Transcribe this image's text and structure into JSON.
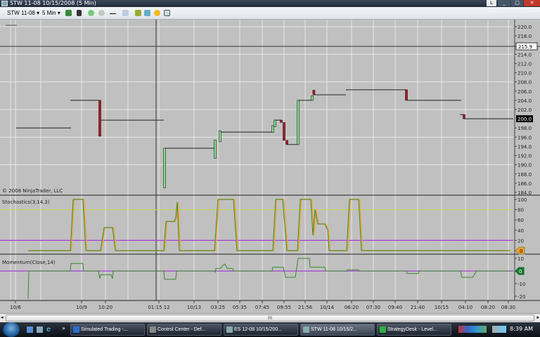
{
  "window": {
    "title": "STW 11-08  10/15/2008 (5 Min)",
    "controls": [
      "L",
      "minimize",
      "maximize",
      "close"
    ]
  },
  "toolbar": {
    "instrument": "STW 11-08",
    "interval": "5 Min",
    "icons": [
      "bar-style-icon",
      "draw-icon",
      "zoom-in-icon",
      "zoom-out-icon",
      "crosshair-icon",
      "properties-icon",
      "strategy-icon",
      "chart-icon",
      "indicator-icon",
      "data-box-icon"
    ]
  },
  "copyright": "© 2008 NinjaTrader, LLC",
  "colors": {
    "up": "#7ee08a",
    "down": "#b0141c",
    "stoch_k": "#3a8a2a",
    "stoch_d": "#f0a030",
    "level80": "#c8d850",
    "level20": "#a040d0",
    "mom": "#3a8a2a",
    "mom_zero": "#a040d0",
    "background": "#c0c0c0",
    "grid": "#e6e6e6"
  },
  "chart_data": [
    {
      "type": "line",
      "title": "STW 11-08 (5 Min)",
      "price_axis": {
        "range": [
          184,
          220
        ],
        "ticks": [
          "220.0",
          "218.0",
          "216.0",
          "214.0",
          "212.0",
          "210.0",
          "208.0",
          "206.0",
          "204.0",
          "202.0",
          "200.0",
          "198.0",
          "196.0",
          "194.0",
          "192.0",
          "190.0",
          "188.0",
          "186.0",
          "184.0"
        ],
        "last_price": "200.0",
        "crosshair_price": "215.9"
      },
      "close_segments": [
        [
          [
            5.75,
            198
          ],
          [
            25.25,
            198
          ]
        ],
        [
          [
            25,
            204
          ],
          [
            35.25,
            204
          ]
        ],
        [
          [
            35.75,
            199.7
          ],
          [
            58.25,
            199.7
          ]
        ],
        [
          [
            58.5,
            193.6
          ],
          [
            76.5,
            193.6
          ]
        ],
        [
          [
            78.5,
            197.1
          ],
          [
            97,
            197.1
          ]
        ],
        [
          [
            97.5,
            199.7
          ],
          [
            100,
            199.7
          ]
        ],
        [
          [
            102,
            194.4
          ],
          [
            106,
            194.4
          ]
        ],
        [
          [
            106,
            204
          ],
          [
            111,
            204
          ]
        ],
        [
          [
            112,
            205.2
          ],
          [
            123,
            205.2
          ]
        ],
        [
          [
            123,
            206.3
          ],
          [
            144.5,
            206.3
          ]
        ],
        [
          [
            144.5,
            204
          ],
          [
            164,
            204
          ]
        ],
        [
          [
            163.5,
            200.9
          ],
          [
            165,
            200.9
          ]
        ],
        [
          [
            165,
            200
          ],
          [
            182.5,
            200
          ]
        ]
      ],
      "candles": [
        [
          35.5,
          204,
          196.2
        ],
        [
          58.5,
          185,
          193.6
        ],
        [
          76.5,
          191.4,
          195.4
        ],
        [
          78.2,
          195,
          197.4
        ],
        [
          97,
          197,
          198.5
        ],
        [
          97.8,
          198.3,
          199.7
        ],
        [
          100,
          199.7,
          199.2
        ],
        [
          101,
          199.2,
          195.3
        ],
        [
          102,
          195.3,
          194.4
        ],
        [
          106,
          194.4,
          204
        ],
        [
          111,
          204,
          205
        ],
        [
          111.6,
          206.2,
          205.2
        ],
        [
          144.5,
          206.3,
          204
        ],
        [
          165,
          200.9,
          200
        ]
      ]
    },
    {
      "type": "line",
      "title": "Stochastics(3,14,3)",
      "axis": {
        "range": [
          0,
          100
        ],
        "ticks": [
          "100",
          "80",
          "60",
          "40",
          "20"
        ],
        "last_value": "0"
      },
      "levels": [
        20,
        80
      ],
      "series": [
        {
          "values": [
            [
              10,
              0
            ],
            [
              25,
              0
            ],
            [
              26,
              100
            ],
            [
              29.5,
              100
            ],
            [
              30.5,
              0
            ],
            [
              35.75,
              0
            ],
            [
              37,
              45
            ],
            [
              40,
              45
            ],
            [
              41,
              0
            ],
            [
              58.25,
              0
            ],
            [
              59,
              57
            ],
            [
              62,
              57
            ],
            [
              62.5,
              65
            ],
            [
              63,
              95
            ],
            [
              63.75,
              0
            ],
            [
              76.25,
              0
            ],
            [
              77.5,
              100
            ],
            [
              83,
              100
            ],
            [
              84.25,
              0
            ],
            [
              97,
              0
            ],
            [
              98,
              100
            ],
            [
              100.5,
              100
            ],
            [
              102,
              0
            ],
            [
              105.75,
              0
            ],
            [
              106.75,
              100
            ],
            [
              110.5,
              100
            ],
            [
              111.25,
              30
            ],
            [
              112,
              80
            ],
            [
              113,
              52
            ],
            [
              115.5,
              52
            ],
            [
              116.5,
              40
            ],
            [
              117,
              0
            ],
            [
              123.25,
              0
            ],
            [
              124.25,
              100
            ],
            [
              127.5,
              100
            ],
            [
              128.5,
              0
            ],
            [
              181.25,
              0
            ]
          ]
        }
      ]
    },
    {
      "type": "line",
      "title": "Momentum(Close,14)",
      "axis": {
        "range": [
          -22,
          12
        ],
        "ticks": [
          "10",
          "-10",
          "-20"
        ],
        "last_value": "0"
      },
      "series": [
        {
          "values": [
            [
              10,
              -22
            ],
            [
              10.25,
              0
            ],
            [
              25,
              0
            ],
            [
              25.25,
              6
            ],
            [
              29.5,
              6
            ],
            [
              29.75,
              0
            ],
            [
              35,
              0
            ],
            [
              35.5,
              -6
            ],
            [
              35.75,
              -3
            ],
            [
              39.5,
              -3
            ],
            [
              40,
              -6
            ],
            [
              40.25,
              0
            ],
            [
              58.25,
              0
            ],
            [
              58.5,
              -6.5
            ],
            [
              62.5,
              -6.5
            ],
            [
              62.75,
              0
            ],
            [
              76.25,
              0
            ],
            [
              76.5,
              -1
            ],
            [
              76.75,
              2
            ],
            [
              78.5,
              2
            ],
            [
              79,
              4
            ],
            [
              80,
              5.5
            ],
            [
              80.75,
              2
            ],
            [
              82.75,
              2
            ],
            [
              83,
              0
            ],
            [
              96.75,
              0
            ],
            [
              97,
              3
            ],
            [
              100.75,
              3
            ],
            [
              101.5,
              -5
            ],
            [
              105,
              -5
            ],
            [
              106,
              10
            ],
            [
              110,
              10
            ],
            [
              110.25,
              3
            ],
            [
              115.5,
              3
            ],
            [
              115.75,
              0
            ],
            [
              123.25,
              0
            ],
            [
              123.5,
              1
            ],
            [
              127.5,
              1
            ],
            [
              127.75,
              0
            ],
            [
              144.5,
              0
            ],
            [
              144.75,
              -2
            ],
            [
              148.75,
              -2
            ],
            [
              149,
              0
            ],
            [
              163.75,
              0
            ],
            [
              164.25,
              -5
            ],
            [
              168,
              -5
            ],
            [
              169.5,
              0
            ],
            [
              181.25,
              0
            ]
          ]
        }
      ]
    }
  ],
  "time_axis": [
    [
      "10/6",
      5.5
    ],
    [
      "10/9",
      29
    ],
    [
      "10:20",
      37.5
    ],
    [
      "01:15 12",
      56.5
    ],
    [
      "10/13",
      69
    ],
    [
      "03:25",
      77.5
    ],
    [
      "05:35",
      85.25
    ],
    [
      "07:45",
      93.25
    ],
    [
      "09:55",
      101
    ],
    [
      "21:56",
      108.5
    ],
    [
      "10/14",
      116.25
    ],
    [
      "06:20",
      125
    ],
    [
      "07:30",
      132.75
    ],
    [
      "09:40",
      140.5
    ],
    [
      "21:40",
      148.5
    ],
    [
      "10/15",
      157
    ],
    [
      "04:10",
      165.5
    ],
    [
      "08:20",
      173.5
    ],
    [
      "08:30",
      180.75
    ]
  ],
  "scrollbar": {
    "grip": "III"
  },
  "taskbar": {
    "items": [
      {
        "label": "Simulated Trading -...",
        "color": "#2a6fd0"
      },
      {
        "label": "Control Center - Def...",
        "color": "#888"
      },
      {
        "label": "ES 12-08  10/15/200...",
        "color": "#8aa"
      },
      {
        "label": "STW 11-08  10/15/2...",
        "color": "#8aa",
        "active": true
      },
      {
        "label": "StrategyDesk - Level...",
        "color": "#2ab040"
      }
    ],
    "clock": "8:39 AM"
  }
}
